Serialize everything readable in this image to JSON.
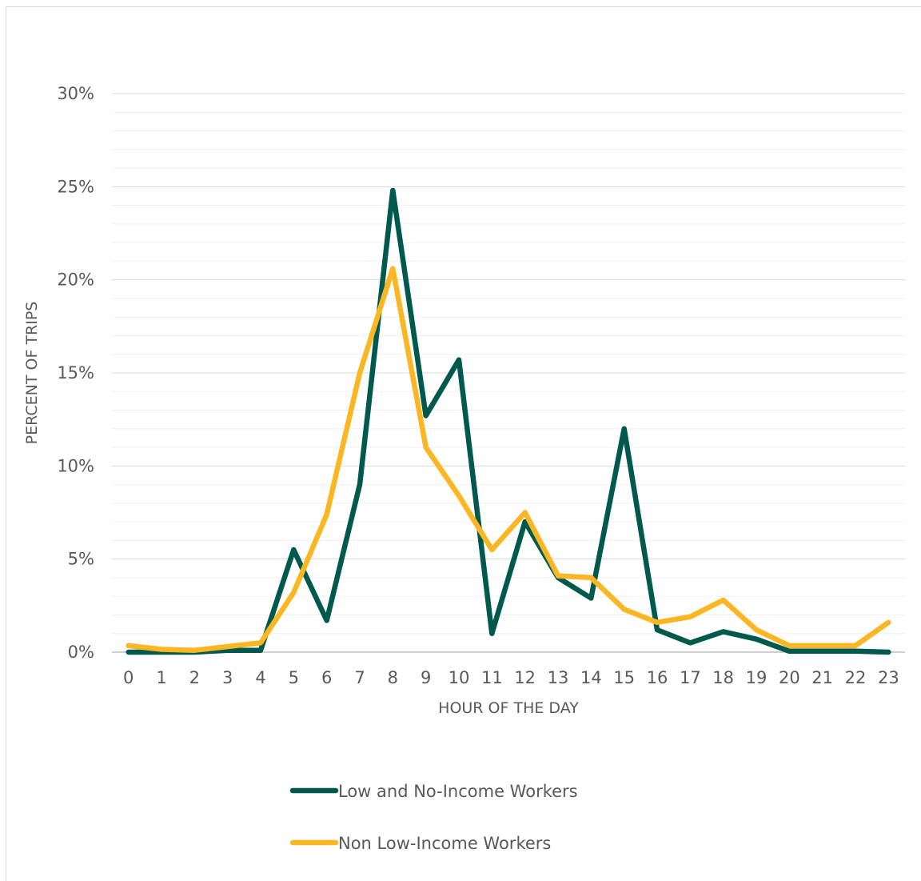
{
  "chart_data": {
    "type": "line",
    "title": "",
    "xlabel": "HOUR OF THE DAY",
    "ylabel": "PERCENT OF TRIPS",
    "ylim": [
      0,
      30
    ],
    "y_ticks": [
      "0%",
      "5%",
      "10%",
      "15%",
      "20%",
      "25%",
      "30%"
    ],
    "y_tick_values": [
      0,
      5,
      10,
      15,
      20,
      25,
      30
    ],
    "minor_gridlines": true,
    "legend_position": "bottom",
    "categories": [
      "0",
      "1",
      "2",
      "3",
      "4",
      "5",
      "6",
      "7",
      "8",
      "9",
      "10",
      "11",
      "12",
      "13",
      "14",
      "15",
      "16",
      "17",
      "18",
      "19",
      "20",
      "21",
      "22",
      "23"
    ],
    "series": [
      {
        "name": "Low and No-Income Workers",
        "color": "#00594c",
        "values": [
          0.0,
          0.0,
          0.0,
          0.1,
          0.1,
          5.5,
          1.7,
          9.0,
          24.8,
          12.7,
          15.7,
          1.0,
          7.0,
          4.0,
          2.9,
          12.0,
          1.2,
          0.5,
          1.1,
          0.7,
          0.05,
          0.05,
          0.05,
          0.0
        ]
      },
      {
        "name": "Non Low-Income Workers",
        "color": "#fbb623",
        "values": [
          0.35,
          0.15,
          0.1,
          0.3,
          0.5,
          3.2,
          7.4,
          15.0,
          20.6,
          11.0,
          8.4,
          5.5,
          7.5,
          4.1,
          4.0,
          2.3,
          1.6,
          1.9,
          2.8,
          1.2,
          0.35,
          0.35,
          0.35,
          1.6
        ]
      }
    ]
  }
}
